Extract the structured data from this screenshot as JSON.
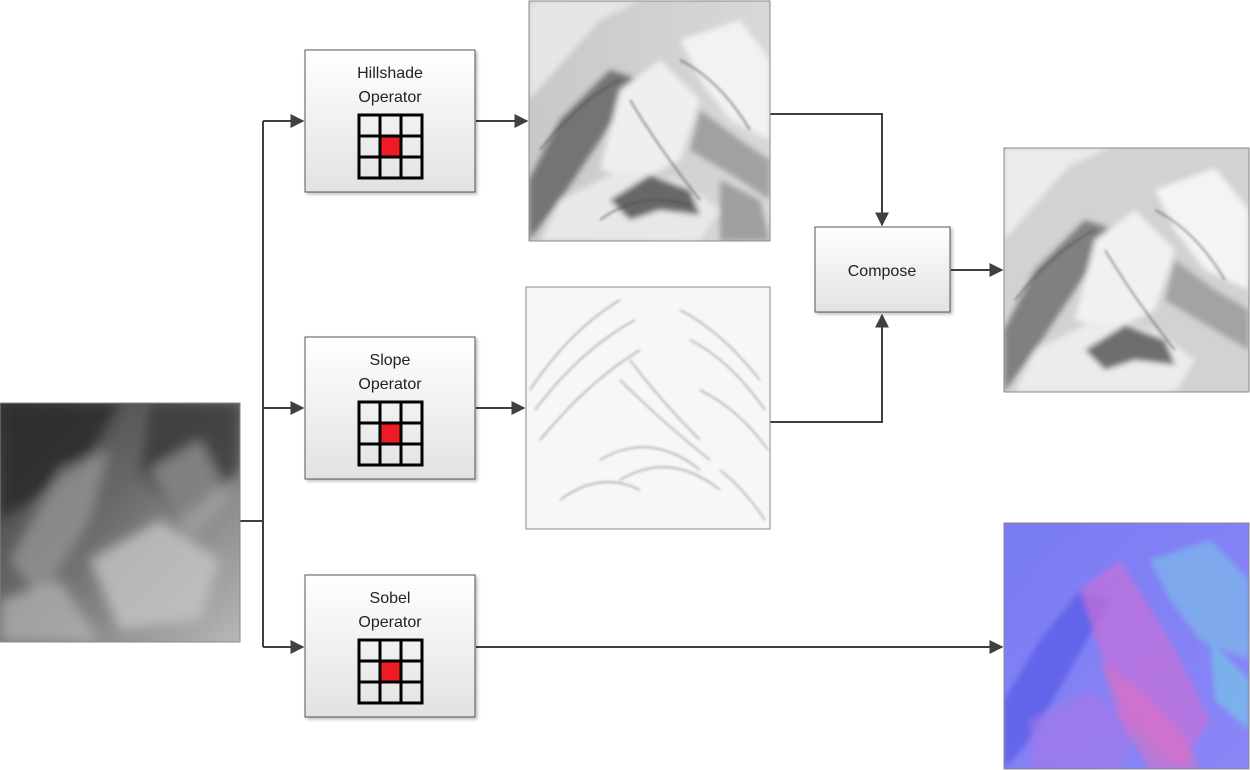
{
  "operators": [
    {
      "id": "hillshade",
      "line1": "Hillshade",
      "line2": "Operator"
    },
    {
      "id": "slope",
      "line1": "Slope",
      "line2": "Operator"
    },
    {
      "id": "sobel",
      "line1": "Sobel",
      "line2": "Operator"
    }
  ],
  "compose": {
    "label": "Compose"
  },
  "colors": {
    "arrow": "#404040",
    "kernel_center": "#ee1c24",
    "kernel_grid": "#000000",
    "box_border": "#555555",
    "normal_map_base": "#7b7cf4"
  },
  "images": [
    {
      "id": "input-heightmap",
      "kind": "grayscale heightmap"
    },
    {
      "id": "hillshade-output",
      "kind": "hillshade"
    },
    {
      "id": "slope-output",
      "kind": "slope"
    },
    {
      "id": "composed-output",
      "kind": "hillshade composed with slope"
    },
    {
      "id": "sobel-output",
      "kind": "normal map"
    }
  ]
}
